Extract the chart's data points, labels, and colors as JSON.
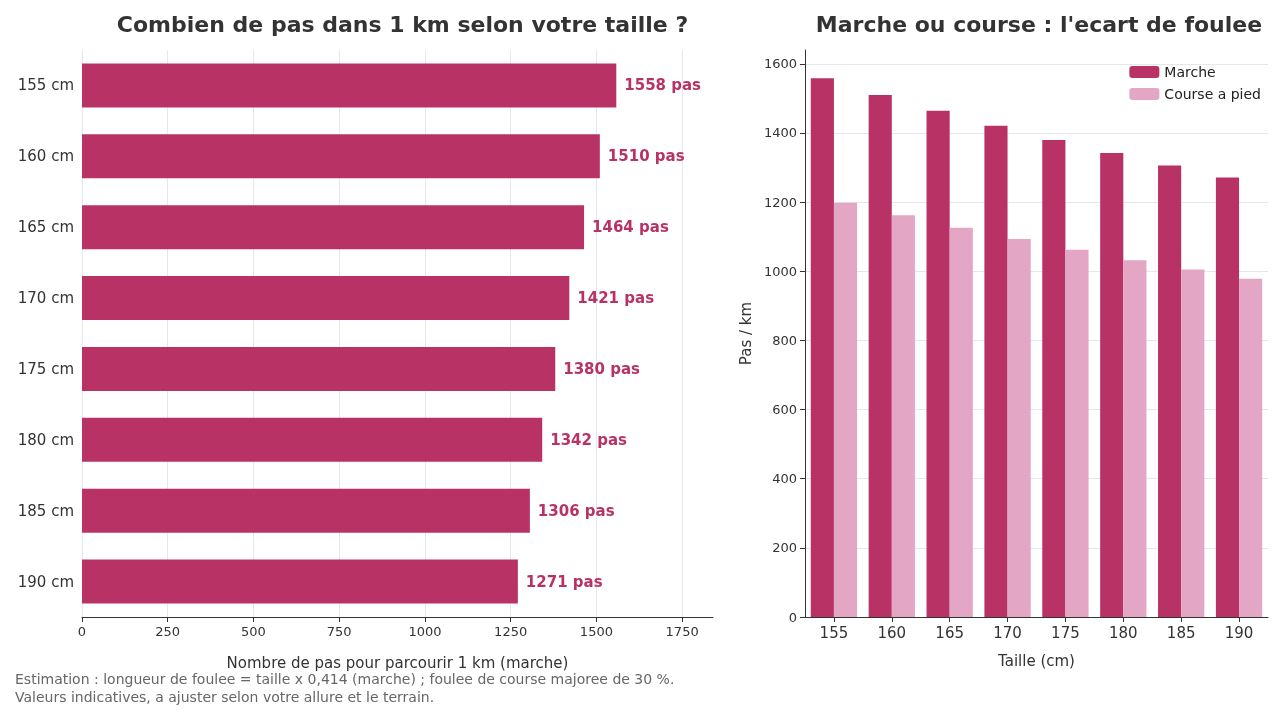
{
  "chart_data": [
    {
      "type": "bar",
      "orientation": "horizontal",
      "title": "Combien de pas dans 1 km selon votre taille ?",
      "xlabel": "Nombre de pas pour parcourir 1 km (marche)",
      "categories": [
        "155 cm",
        "160 cm",
        "165 cm",
        "170 cm",
        "175 cm",
        "180 cm",
        "185 cm",
        "190 cm"
      ],
      "values": [
        1558,
        1510,
        1464,
        1421,
        1380,
        1342,
        1306,
        1271
      ],
      "color": "#b83266",
      "value_labels": [
        "1558 pas",
        "1510 pas",
        "1464 pas",
        "1421 pas",
        "1380 pas",
        "1342 pas",
        "1306 pas",
        "1271 pas"
      ],
      "xlim": [
        0,
        1840
      ],
      "xticks": [
        0,
        250,
        500,
        750,
        1000,
        1250,
        1500,
        1750
      ],
      "grid": "x",
      "legend": false,
      "annotations": [
        "Estimation : longueur de foulee = taille x 0,414 (marche) ; foulee de course majoree de 30 %.",
        "Valeurs indicatives, a ajuster selon votre allure et le terrain."
      ]
    },
    {
      "type": "bar",
      "title": "Marche ou course : l'ecart de foulee",
      "xlabel": "Taille (cm)",
      "ylabel": "Pas / km",
      "categories": [
        "155",
        "160",
        "165",
        "170",
        "175",
        "180",
        "185",
        "190"
      ],
      "series": [
        {
          "name": "Marche",
          "color": "#b83266",
          "values": [
            1558,
            1510,
            1464,
            1421,
            1380,
            1342,
            1306,
            1271
          ]
        },
        {
          "name": "Course a pied",
          "color": "#e3a6c4",
          "values": [
            1198,
            1162,
            1126,
            1093,
            1062,
            1032,
            1005,
            978
          ]
        }
      ],
      "ylim": [
        0,
        1640
      ],
      "yticks": [
        0,
        200,
        400,
        600,
        800,
        1000,
        1200,
        1400,
        1600
      ],
      "grid": "y",
      "legend": "top right"
    }
  ]
}
